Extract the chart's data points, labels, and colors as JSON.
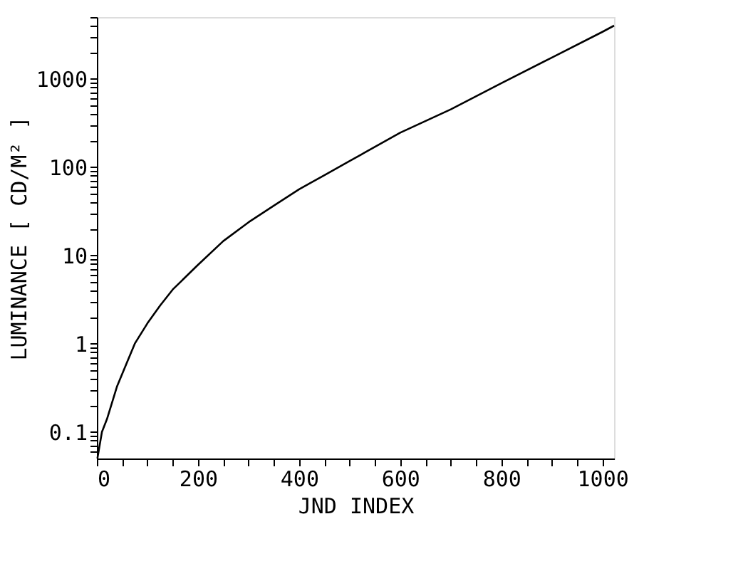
{
  "chart_data": {
    "type": "line",
    "xlabel": "JND INDEX",
    "ylabel": "LUMINANCE [ CD/M² ]",
    "series": [
      {
        "color": "#000000",
        "x": [
          1,
          10,
          20,
          40,
          75,
          100,
          125,
          150,
          200,
          250,
          300,
          350,
          400,
          450,
          500,
          600,
          700,
          800,
          900,
          1000,
          1023
        ],
        "values": [
          0.05,
          0.1,
          0.14,
          0.33,
          1.0,
          1.7,
          2.7,
          4.1,
          7.8,
          14.5,
          23.7,
          36.6,
          56,
          81,
          117,
          245,
          450,
          890,
          1740,
          3400,
          4000
        ]
      }
    ],
    "xlim": [
      0,
      1023
    ],
    "ylim": [
      0.05,
      5000
    ],
    "log": "y",
    "grid": false,
    "marker": "none",
    "line_style": "solid",
    "xticks": [
      0,
      {
        "value": 50,
        "label": null
      },
      {
        "value": 100,
        "label": null
      },
      {
        "value": 150,
        "label": null
      },
      200,
      {
        "value": 250,
        "label": null
      },
      {
        "value": 300,
        "label": null
      },
      {
        "value": 350,
        "label": null
      },
      400,
      {
        "value": 450,
        "label": null
      },
      {
        "value": 500,
        "label": null
      },
      {
        "value": 550,
        "label": null
      },
      600,
      {
        "value": 650,
        "label": null
      },
      {
        "value": 700,
        "label": null
      },
      {
        "value": 750,
        "label": null
      },
      800,
      {
        "value": 850,
        "label": null
      },
      {
        "value": 900,
        "label": null
      },
      {
        "value": 950,
        "label": null
      },
      1000
    ],
    "yticks": [
      {
        "value": 0.06,
        "label": null
      },
      {
        "value": 0.07,
        "label": null
      },
      {
        "value": 0.08,
        "label": null
      },
      {
        "value": 0.09,
        "label": null
      },
      0.1,
      {
        "value": 0.2,
        "label": null
      },
      {
        "value": 0.3,
        "label": null
      },
      {
        "value": 0.4,
        "label": null
      },
      {
        "value": 0.5,
        "label": null
      },
      {
        "value": 0.6,
        "label": null
      },
      {
        "value": 0.7,
        "label": null
      },
      {
        "value": 0.8,
        "label": null
      },
      {
        "value": 0.9,
        "label": null
      },
      1,
      {
        "value": 2,
        "label": null
      },
      {
        "value": 3,
        "label": null
      },
      {
        "value": 4,
        "label": null
      },
      {
        "value": 5,
        "label": null
      },
      {
        "value": 6,
        "label": null
      },
      {
        "value": 7,
        "label": null
      },
      {
        "value": 8,
        "label": null
      },
      {
        "value": 9,
        "label": null
      },
      10,
      {
        "value": 20,
        "label": null
      },
      {
        "value": 30,
        "label": null
      },
      {
        "value": 40,
        "label": null
      },
      {
        "value": 50,
        "label": null
      },
      {
        "value": 60,
        "label": null
      },
      {
        "value": 70,
        "label": null
      },
      {
        "value": 80,
        "label": null
      },
      {
        "value": 90,
        "label": null
      },
      100,
      {
        "value": 200,
        "label": null
      },
      {
        "value": 300,
        "label": null
      },
      {
        "value": 400,
        "label": null
      },
      {
        "value": 500,
        "label": null
      },
      {
        "value": 600,
        "label": null
      },
      {
        "value": 700,
        "label": null
      },
      {
        "value": 800,
        "label": null
      },
      {
        "value": 900,
        "label": null
      },
      1000,
      {
        "value": 2000,
        "label": null
      },
      {
        "value": 3000,
        "label": null
      },
      {
        "value": 4000,
        "label": null
      },
      {
        "value": 5000,
        "label": null
      }
    ]
  }
}
